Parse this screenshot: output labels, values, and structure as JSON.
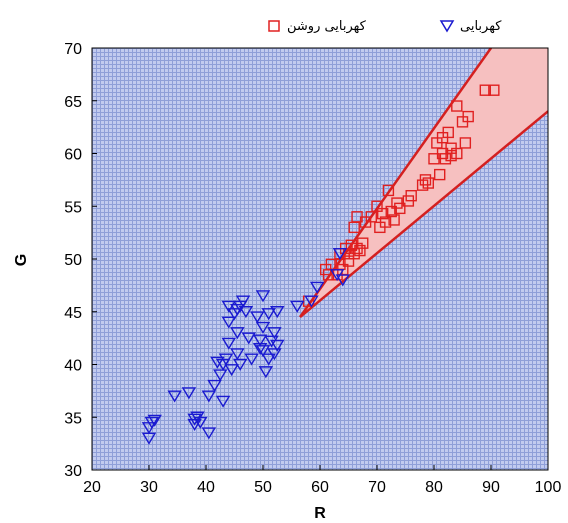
{
  "chart_data": {
    "type": "scatter",
    "xlabel": "R",
    "ylabel": "G",
    "xlim": [
      20,
      100
    ],
    "ylim": [
      30,
      70
    ],
    "xticks": [
      20,
      30,
      40,
      50,
      60,
      70,
      80,
      90,
      100
    ],
    "yticks": [
      30,
      35,
      40,
      45,
      50,
      55,
      60,
      65,
      70
    ],
    "grid": true,
    "legend_position": "top",
    "colors": {
      "background_grid": "#8f9fd8",
      "background_fill": "#c2cbef",
      "region_fill": "#f6c0c0",
      "region_edge": "#d42020",
      "series_amber": "#1a1ad0",
      "series_light_amber": "#e02020"
    },
    "region_boundary": {
      "apex": [
        56.5,
        44.5
      ],
      "upper_edge": [
        [
          56.5,
          44.5
        ],
        [
          90,
          70
        ]
      ],
      "lower_edge": [
        [
          56.5,
          44.5
        ],
        [
          100,
          64
        ]
      ]
    },
    "series": [
      {
        "name": "کهربایی",
        "marker": "triangle-down",
        "color": "#1a1ad0",
        "points": [
          [
            30,
            33
          ],
          [
            30.5,
            34.5
          ],
          [
            30,
            34
          ],
          [
            31,
            34.7
          ],
          [
            34.5,
            37
          ],
          [
            37,
            37.3
          ],
          [
            38,
            34.3
          ],
          [
            38.5,
            35
          ],
          [
            39,
            34.5
          ],
          [
            38,
            34.8
          ],
          [
            40.5,
            33.5
          ],
          [
            40.5,
            37
          ],
          [
            41.5,
            38
          ],
          [
            42,
            40.2
          ],
          [
            42.5,
            39
          ],
          [
            43,
            36.5
          ],
          [
            43,
            40
          ],
          [
            43.5,
            40.5
          ],
          [
            44,
            42
          ],
          [
            44,
            44
          ],
          [
            44,
            45.5
          ],
          [
            44.5,
            39.5
          ],
          [
            45,
            44.8
          ],
          [
            45.5,
            41
          ],
          [
            45.5,
            43
          ],
          [
            45.5,
            45.2
          ],
          [
            46,
            40
          ],
          [
            46,
            45.5
          ],
          [
            46.5,
            46
          ],
          [
            47,
            45
          ],
          [
            47.5,
            42.5
          ],
          [
            48,
            40.5
          ],
          [
            49,
            44.5
          ],
          [
            49.5,
            41.5
          ],
          [
            49.5,
            42.3
          ],
          [
            50,
            46.5
          ],
          [
            50,
            41.3
          ],
          [
            50,
            43.5
          ],
          [
            50.5,
            39.3
          ],
          [
            51,
            40.5
          ],
          [
            51,
            44.8
          ],
          [
            51.5,
            42.2
          ],
          [
            52,
            43
          ],
          [
            52,
            41
          ],
          [
            52.5,
            45
          ],
          [
            52.5,
            41.8
          ],
          [
            56,
            45.5
          ],
          [
            58.5,
            46
          ],
          [
            59.5,
            47.3
          ],
          [
            63,
            48.5
          ],
          [
            63.5,
            50.5
          ],
          [
            64,
            48
          ]
        ]
      },
      {
        "name": "کهربایی روشن",
        "marker": "square",
        "color": "#e02020",
        "points": [
          [
            58,
            46
          ],
          [
            61,
            49
          ],
          [
            61.5,
            48.5
          ],
          [
            62,
            49.5
          ],
          [
            63,
            48.5
          ],
          [
            63.5,
            49.5
          ],
          [
            63.5,
            50.5
          ],
          [
            64,
            49
          ],
          [
            64.5,
            51
          ],
          [
            65,
            50.5
          ],
          [
            65,
            49.8
          ],
          [
            65.5,
            51.3
          ],
          [
            66,
            53
          ],
          [
            66,
            50.5
          ],
          [
            66.5,
            51
          ],
          [
            66.5,
            54
          ],
          [
            67,
            50.8
          ],
          [
            67.5,
            51.5
          ],
          [
            68,
            53.5
          ],
          [
            69,
            54
          ],
          [
            70,
            55
          ],
          [
            70.5,
            53
          ],
          [
            71,
            54.3
          ],
          [
            71.5,
            53.5
          ],
          [
            72,
            56.5
          ],
          [
            72.5,
            54.5
          ],
          [
            73,
            53.7
          ],
          [
            73.5,
            55.3
          ],
          [
            74,
            54.8
          ],
          [
            75.5,
            55.5
          ],
          [
            76,
            56
          ],
          [
            78,
            57
          ],
          [
            78.5,
            57.5
          ],
          [
            79,
            57.2
          ],
          [
            80,
            59.5
          ],
          [
            80.5,
            61
          ],
          [
            81,
            58
          ],
          [
            81.5,
            61.5
          ],
          [
            81.5,
            60
          ],
          [
            82,
            59.5
          ],
          [
            82.5,
            62
          ],
          [
            83,
            60.5
          ],
          [
            83,
            59.8
          ],
          [
            84,
            64.5
          ],
          [
            84,
            60
          ],
          [
            85,
            63
          ],
          [
            85.5,
            61
          ],
          [
            86,
            63.5
          ],
          [
            89,
            66
          ],
          [
            90.5,
            66
          ]
        ]
      }
    ]
  }
}
